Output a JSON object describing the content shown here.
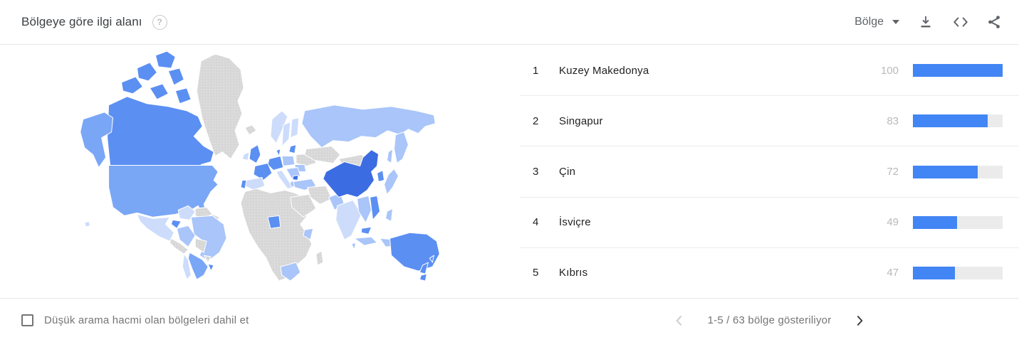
{
  "header": {
    "title": "Bölgeye göre ilgi alanı",
    "help_icon": "?",
    "metric_picker": {
      "label": "Bölge"
    }
  },
  "colors": {
    "bar_fill": "#4285f4",
    "bar_track": "#ebebeb",
    "icon_gray": "#5f6368",
    "value_text": "#b9b9b9"
  },
  "list": {
    "max_value": 100,
    "items": [
      {
        "rank": "1",
        "name": "Kuzey Makedonya",
        "value": 100
      },
      {
        "rank": "2",
        "name": "Singapur",
        "value": 83
      },
      {
        "rank": "3",
        "name": "Çin",
        "value": 72
      },
      {
        "rank": "4",
        "name": "İsviçre",
        "value": 49
      },
      {
        "rank": "5",
        "name": "Kıbrıs",
        "value": 47
      }
    ]
  },
  "chart_data": {
    "type": "bar",
    "title": "Bölgeye göre ilgi alanı",
    "categories": [
      "Kuzey Makedonya",
      "Singapur",
      "Çin",
      "İsviçre",
      "Kıbrıs"
    ],
    "values": [
      100,
      83,
      72,
      49,
      47
    ],
    "xlim": [
      0,
      100
    ],
    "legend_position": "none",
    "companion": "world-choropleth-map"
  },
  "map": {
    "palette": {
      "none": "url(#gdots)",
      "q1": "#cddcfb",
      "q2": "#a9c5f9",
      "q3": "#7aa6f6",
      "q4": "#5b8ff2",
      "q5": "#3c6ce2"
    },
    "regions": {
      "greenland": "none",
      "canada": "q4",
      "alaska": "q3",
      "usa": "q3",
      "mexico": "q1",
      "central-america": "none",
      "caribbean": "none",
      "colombia": "q1",
      "venezuela": "none",
      "guyana": "none",
      "ecuador": "q4",
      "peru": "q2",
      "brazil": "q2",
      "bolivia": "none",
      "paraguay": "none",
      "argentina": "q3",
      "chile": "q1",
      "uruguay": "q4",
      "iceland": "none",
      "uk": "q4",
      "ireland": "q1",
      "norway": "q1",
      "sweden": "q1",
      "finland": "q1",
      "denmark": "q4",
      "germany": "q4",
      "poland": "q2",
      "france": "q4",
      "spain": "q1",
      "portugal": "q4",
      "italy": "q1",
      "balkans": "q2",
      "macedonia": "q5",
      "greece": "q2",
      "romania": "q2",
      "ukraine": "none",
      "baltics": "q4",
      "turkey": "q2",
      "africa": "none",
      "nigeria": "q4",
      "kenya": "q2",
      "south-africa": "q2",
      "madagascar": "none",
      "russia": "q2",
      "kazakhstan": "none",
      "saudi": "none",
      "iran": "none",
      "pakistan": "q2",
      "india": "q1",
      "sri-lanka": "q2",
      "china": "q5",
      "mongolia": "none",
      "korea": "q4",
      "japan": "q2",
      "myanmar": "q2",
      "vietnam": "q4",
      "malaysia": "q4",
      "indonesia": "q2",
      "philippines": "q2",
      "taiwan": "q2",
      "papua": "q2",
      "australia": "q4",
      "tasmania": "q4",
      "new-zealand": "q4",
      "hawaii": "q1"
    }
  },
  "footer": {
    "checkbox_label": "Düşük arama hacmi olan bölgeleri dahil et",
    "checkbox_checked": false,
    "pagination": {
      "label": "1-5 / 63 bölge gösteriliyor"
    }
  }
}
